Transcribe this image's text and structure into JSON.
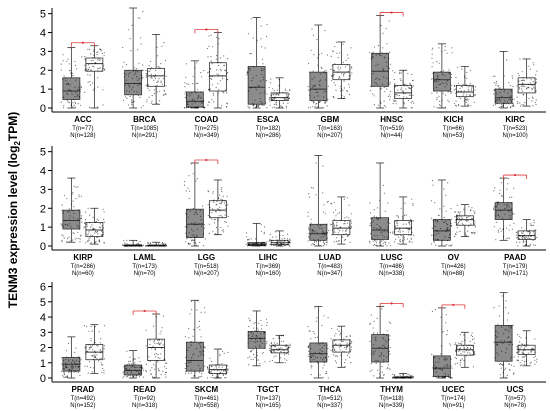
{
  "figure": {
    "ylabel_main": "TENM3 expression level (log",
    "ylabel_sub": "2",
    "ylabel_end": "TPM)"
  },
  "colors": {
    "tumor_box": "#8c8c8c",
    "normal_box": "#ffffff",
    "box_stroke": "#333333",
    "significance": "#e0343a",
    "points": "#000000"
  },
  "chart_data": [
    {
      "type": "box",
      "ylim": [
        0,
        5.3
      ],
      "yticks": [
        0,
        1,
        2,
        3,
        4,
        5
      ],
      "categories": [
        {
          "name": "ACC",
          "t_label": "T(n=77)",
          "n_label": "N(n=128)",
          "sig": true,
          "tumor": {
            "min": 0,
            "q1": 0.45,
            "median": 0.9,
            "q3": 1.6,
            "max": 3.2
          },
          "normal": {
            "min": 0,
            "q1": 1.95,
            "median": 2.35,
            "q3": 2.65,
            "max": 3.3
          }
        },
        {
          "name": "BRCA",
          "t_label": "T(n=1085)",
          "n_label": "N(n=291)",
          "sig": false,
          "tumor": {
            "min": 0,
            "q1": 0.7,
            "median": 1.3,
            "q3": 2.0,
            "max": 5.3
          },
          "normal": {
            "min": 0.2,
            "q1": 1.15,
            "median": 1.7,
            "q3": 2.1,
            "max": 3.9
          }
        },
        {
          "name": "COAD",
          "t_label": "T(n=275)",
          "n_label": "N(n=349)",
          "sig": true,
          "tumor": {
            "min": 0,
            "q1": 0.05,
            "median": 0.35,
            "q3": 0.85,
            "max": 2.5
          },
          "normal": {
            "min": 0,
            "q1": 0.9,
            "median": 1.7,
            "q3": 2.4,
            "max": 4.0
          }
        },
        {
          "name": "ESCA",
          "t_label": "T(n=182)",
          "n_label": "N(n=286)",
          "sig": false,
          "tumor": {
            "min": 0,
            "q1": 0.2,
            "median": 1.1,
            "q3": 2.2,
            "max": 4.8
          },
          "normal": {
            "min": 0,
            "q1": 0.4,
            "median": 0.55,
            "q3": 0.8,
            "max": 1.6
          }
        },
        {
          "name": "GBM",
          "t_label": "T(n=163)",
          "n_label": "N(n=207)",
          "sig": false,
          "tumor": {
            "min": 0,
            "q1": 0.4,
            "median": 1.0,
            "q3": 1.9,
            "max": 4.4
          },
          "normal": {
            "min": 0.5,
            "q1": 1.5,
            "median": 1.9,
            "q3": 2.3,
            "max": 3.5
          }
        },
        {
          "name": "HNSC",
          "t_label": "T(n=519)",
          "n_label": "N(n=44)",
          "sig": true,
          "tumor": {
            "min": 0,
            "q1": 1.15,
            "median": 1.95,
            "q3": 2.9,
            "max": 4.9
          },
          "normal": {
            "min": 0,
            "q1": 0.5,
            "median": 0.8,
            "q3": 1.2,
            "max": 2.0
          }
        },
        {
          "name": "KICH",
          "t_label": "T(n=66)",
          "n_label": "N(n=53)",
          "sig": false,
          "tumor": {
            "min": 0,
            "q1": 0.9,
            "median": 1.5,
            "q3": 1.9,
            "max": 3.4
          },
          "normal": {
            "min": 0.1,
            "q1": 0.6,
            "median": 0.85,
            "q3": 1.2,
            "max": 2.2
          }
        },
        {
          "name": "KIRC",
          "t_label": "T(n=523)",
          "n_label": "N(n=100)",
          "sig": false,
          "tumor": {
            "min": 0,
            "q1": 0.25,
            "median": 0.55,
            "q3": 1.0,
            "max": 3.0
          },
          "normal": {
            "min": 0.1,
            "q1": 0.8,
            "median": 1.25,
            "q3": 1.6,
            "max": 2.6
          }
        }
      ]
    },
    {
      "type": "box",
      "ylim": [
        0,
        5.3
      ],
      "yticks": [
        0,
        1,
        2,
        3,
        4,
        5
      ],
      "categories": [
        {
          "name": "KIRP",
          "t_label": "T(n=286)",
          "n_label": "N(n=60)",
          "sig": false,
          "tumor": {
            "min": 0.2,
            "q1": 0.9,
            "median": 1.35,
            "q3": 1.9,
            "max": 3.6
          },
          "normal": {
            "min": 0.1,
            "q1": 0.5,
            "median": 0.85,
            "q3": 1.25,
            "max": 2.0
          }
        },
        {
          "name": "LAML",
          "t_label": "T(n=173)",
          "n_label": "N(n=70)",
          "sig": false,
          "tumor": {
            "min": 0,
            "q1": 0.0,
            "median": 0.02,
            "q3": 0.06,
            "max": 0.3
          },
          "normal": {
            "min": 0,
            "q1": 0.0,
            "median": 0.02,
            "q3": 0.05,
            "max": 0.2
          }
        },
        {
          "name": "LGG",
          "t_label": "T(n=518)",
          "n_label": "N(n=207)",
          "sig": true,
          "tumor": {
            "min": 0,
            "q1": 0.45,
            "median": 1.15,
            "q3": 1.95,
            "max": 4.4
          },
          "normal": {
            "min": 0.6,
            "q1": 1.5,
            "median": 1.9,
            "q3": 2.4,
            "max": 3.5
          }
        },
        {
          "name": "LIHC",
          "t_label": "T(n=369)",
          "n_label": "N(n=160)",
          "sig": false,
          "tumor": {
            "min": 0,
            "q1": 0.02,
            "median": 0.07,
            "q3": 0.18,
            "max": 1.2
          },
          "normal": {
            "min": 0,
            "q1": 0.08,
            "median": 0.17,
            "q3": 0.3,
            "max": 0.8
          }
        },
        {
          "name": "LUAD",
          "t_label": "T(n=483)",
          "n_label": "N(n=347)",
          "sig": false,
          "tumor": {
            "min": 0,
            "q1": 0.3,
            "median": 0.65,
            "q3": 1.15,
            "max": 4.8
          },
          "normal": {
            "min": 0.1,
            "q1": 0.6,
            "median": 0.95,
            "q3": 1.35,
            "max": 2.6
          }
        },
        {
          "name": "LUSC",
          "t_label": "T(n=486)",
          "n_label": "N(n=338)",
          "sig": false,
          "tumor": {
            "min": 0,
            "q1": 0.35,
            "median": 0.85,
            "q3": 1.5,
            "max": 4.4
          },
          "normal": {
            "min": 0.1,
            "q1": 0.6,
            "median": 0.95,
            "q3": 1.35,
            "max": 2.6
          }
        },
        {
          "name": "OV",
          "t_label": "T(n=426)",
          "n_label": "N(n=88)",
          "sig": false,
          "tumor": {
            "min": 0,
            "q1": 0.3,
            "median": 0.8,
            "q3": 1.4,
            "max": 3.5
          },
          "normal": {
            "min": 0.5,
            "q1": 1.1,
            "median": 1.4,
            "q3": 1.6,
            "max": 2.2
          }
        },
        {
          "name": "PAAD",
          "t_label": "T(n=179)",
          "n_label": "N(n=171)",
          "sig": true,
          "tumor": {
            "min": 0.3,
            "q1": 1.4,
            "median": 1.9,
            "q3": 2.3,
            "max": 3.6
          },
          "normal": {
            "min": 0,
            "q1": 0.35,
            "median": 0.55,
            "q3": 0.8,
            "max": 1.4
          }
        }
      ]
    },
    {
      "type": "box",
      "ylim": [
        0,
        6.3
      ],
      "yticks": [
        0,
        1,
        2,
        3,
        4,
        5,
        6
      ],
      "categories": [
        {
          "name": "PRAD",
          "t_label": "T(n=492)",
          "n_label": "N(n=152)",
          "sig": false,
          "tumor": {
            "min": 0,
            "q1": 0.45,
            "median": 0.9,
            "q3": 1.35,
            "max": 2.7
          },
          "normal": {
            "min": 0.3,
            "q1": 1.2,
            "median": 1.7,
            "q3": 2.2,
            "max": 3.5
          }
        },
        {
          "name": "READ",
          "t_label": "T(n=92)",
          "n_label": "N(n=318)",
          "sig": true,
          "tumor": {
            "min": 0,
            "q1": 0.2,
            "median": 0.5,
            "q3": 0.85,
            "max": 1.8
          },
          "normal": {
            "min": 0,
            "q1": 1.15,
            "median": 2.0,
            "q3": 2.55,
            "max": 4.2
          }
        },
        {
          "name": "SKCM",
          "t_label": "T(n=461)",
          "n_label": "N(n=558)",
          "sig": false,
          "tumor": {
            "min": 0,
            "q1": 0.45,
            "median": 1.15,
            "q3": 2.35,
            "max": 5.1
          },
          "normal": {
            "min": 0,
            "q1": 0.3,
            "median": 0.55,
            "q3": 0.85,
            "max": 1.9
          }
        },
        {
          "name": "TGCT",
          "t_label": "T(n=137)",
          "n_label": "N(n=165)",
          "sig": false,
          "tumor": {
            "min": 0.8,
            "q1": 1.95,
            "median": 2.6,
            "q3": 3.05,
            "max": 4.4
          },
          "normal": {
            "min": 1.0,
            "q1": 1.65,
            "median": 1.85,
            "q3": 2.15,
            "max": 2.8
          }
        },
        {
          "name": "THCA",
          "t_label": "T(n=512)",
          "n_label": "N(n=337)",
          "sig": false,
          "tumor": {
            "min": 0,
            "q1": 1.05,
            "median": 1.6,
            "q3": 2.3,
            "max": 4.7
          },
          "normal": {
            "min": 0.7,
            "q1": 1.7,
            "median": 2.15,
            "q3": 2.5,
            "max": 3.4
          }
        },
        {
          "name": "THYM",
          "t_label": "T(n=118)",
          "n_label": "N(n=339)",
          "sig": true,
          "tumor": {
            "min": 0,
            "q1": 1.05,
            "median": 1.95,
            "q3": 2.85,
            "max": 4.7
          },
          "normal": {
            "min": 0,
            "q1": 0.0,
            "median": 0.03,
            "q3": 0.08,
            "max": 0.3
          }
        },
        {
          "name": "UCEC",
          "t_label": "T(n=174)",
          "n_label": "N(n=91)",
          "sig": true,
          "tumor": {
            "min": 0,
            "q1": 0.1,
            "median": 0.65,
            "q3": 1.45,
            "max": 4.6
          },
          "normal": {
            "min": 0.7,
            "q1": 1.5,
            "median": 1.85,
            "q3": 2.15,
            "max": 3.0
          }
        },
        {
          "name": "UCS",
          "t_label": "T(n=57)",
          "n_label": "N(n=78)",
          "sig": false,
          "tumor": {
            "min": 0,
            "q1": 1.1,
            "median": 2.35,
            "q3": 3.45,
            "max": 5.6
          },
          "normal": {
            "min": 0.8,
            "q1": 1.55,
            "median": 1.85,
            "q3": 2.15,
            "max": 3.1
          }
        }
      ]
    }
  ]
}
